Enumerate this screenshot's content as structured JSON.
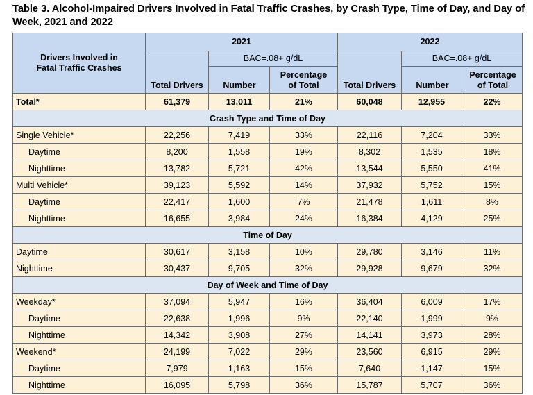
{
  "title": "Table 3. Alcohol-Impaired Drivers Involved in Fatal Traffic Crashes, by Crash Type, Time of Day, and Day of Week, 2021 and 2022",
  "table": {
    "header": {
      "label": "Drivers Involved in Fatal Traffic Crashes",
      "years": [
        "2021",
        "2022"
      ],
      "bac": [
        "BAC=.08+ g/dL",
        "BAC=.08+ g/dL"
      ],
      "columns": [
        "Total Drivers",
        "Number",
        "Percentage of Total",
        "Total Drivers",
        "Number",
        "Percentage of Total"
      ]
    },
    "total": {
      "label": "Total*",
      "cells": [
        "61,379",
        "13,011",
        "21%",
        "60,048",
        "12,955",
        "22%"
      ]
    },
    "sections": [
      {
        "title": "Crash Type and Time of Day",
        "rows": [
          {
            "label": "Single Vehicle*",
            "cells": [
              "22,256",
              "7,419",
              "33%",
              "22,116",
              "7,204",
              "33%"
            ],
            "children": [
              {
                "label": "Daytime",
                "cells": [
                  "8,200",
                  "1,558",
                  "19%",
                  "8,302",
                  "1,535",
                  "18%"
                ]
              },
              {
                "label": "Nighttime",
                "cells": [
                  "13,782",
                  "5,721",
                  "42%",
                  "13,544",
                  "5,550",
                  "41%"
                ]
              }
            ]
          },
          {
            "label": "Multi Vehicle*",
            "cells": [
              "39,123",
              "5,592",
              "14%",
              "37,932",
              "5,752",
              "15%"
            ],
            "children": [
              {
                "label": "Daytime",
                "cells": [
                  "22,417",
                  "1,600",
                  "7%",
                  "21,478",
                  "1,611",
                  "8%"
                ]
              },
              {
                "label": "Nighttime",
                "cells": [
                  "16,655",
                  "3,984",
                  "24%",
                  "16,384",
                  "4,129",
                  "25%"
                ]
              }
            ]
          }
        ]
      },
      {
        "title": "Time of Day",
        "rows": [
          {
            "label": "Daytime",
            "cells": [
              "30,617",
              "3,158",
              "10%",
              "29,780",
              "3,146",
              "11%"
            ]
          },
          {
            "label": "Nighttime",
            "cells": [
              "30,437",
              "9,705",
              "32%",
              "29,928",
              "9,679",
              "32%"
            ]
          }
        ]
      },
      {
        "title": "Day of Week and Time of Day",
        "rows": [
          {
            "label": "Weekday*",
            "cells": [
              "37,094",
              "5,947",
              "16%",
              "36,404",
              "6,009",
              "17%"
            ],
            "children": [
              {
                "label": "Daytime",
                "cells": [
                  "22,638",
                  "1,996",
                  "9%",
                  "22,140",
                  "1,999",
                  "9%"
                ]
              },
              {
                "label": "Nighttime",
                "cells": [
                  "14,342",
                  "3,908",
                  "27%",
                  "14,141",
                  "3,973",
                  "28%"
                ]
              }
            ]
          },
          {
            "label": "Weekend*",
            "cells": [
              "24,199",
              "7,022",
              "29%",
              "23,560",
              "6,915",
              "29%"
            ],
            "children": [
              {
                "label": "Daytime",
                "cells": [
                  "7,979",
                  "1,163",
                  "15%",
                  "7,640",
                  "1,147",
                  "15%"
                ]
              },
              {
                "label": "Nighttime",
                "cells": [
                  "16,095",
                  "5,798",
                  "36%",
                  "15,787",
                  "5,707",
                  "36%"
                ]
              }
            ]
          }
        ]
      }
    ]
  }
}
